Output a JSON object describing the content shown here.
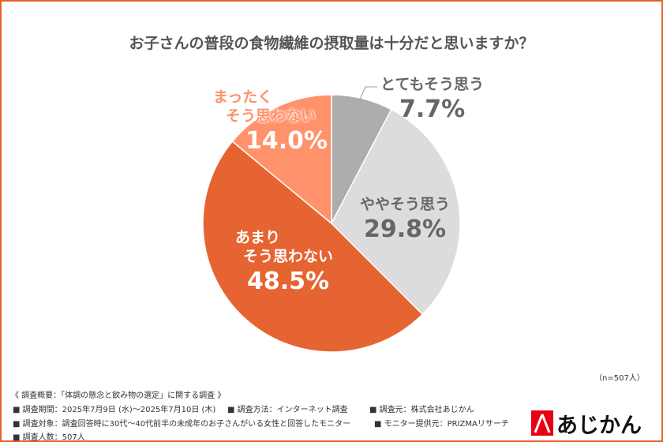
{
  "chart_data": {
    "type": "pie",
    "title": "お子さんの普段の食物繊維の摂取量は十分だと思いますか？",
    "slices": [
      {
        "label": "とてもそう思う",
        "value": 7.7,
        "value_label": "7.7%",
        "color": "#adadad"
      },
      {
        "label": "ややそう思う",
        "value": 29.8,
        "value_label": "29.8%",
        "color": "#dcdcdc"
      },
      {
        "label": "あまり そう思わない",
        "label_lines": [
          "あまり",
          "そう思わない"
        ],
        "value": 48.5,
        "value_label": "48.5%",
        "color": "#e66432"
      },
      {
        "label": "まったく そう思わない",
        "label_lines": [
          "まったく",
          "そう思わない"
        ],
        "value": 14.0,
        "value_label": "14.0%",
        "color": "#ff926a"
      }
    ],
    "start_angle": "12 o'clock, clockwise"
  },
  "sample_size": "（n=507人）",
  "notes": {
    "heading": "《 調査概要：「体調の懸念と飲み物の選定」に関する調査 》",
    "period": "■ 調査期間：2025年7月9日 (水)～2025年7月10日 (木)",
    "method": "■ 調査方法：インターネット調査",
    "source": "■ 調査元：株式会社あじかん",
    "target": "■ 調査対象：調査回答時に30代～40代前半の未成年のお子さんがいる女性と回答したモニター",
    "provider": "■ モニター提供元：PRIZMAリサーチ",
    "count": "■ 調査人数：507人"
  },
  "logo": {
    "text": "あじかん",
    "color": "#e60012"
  }
}
